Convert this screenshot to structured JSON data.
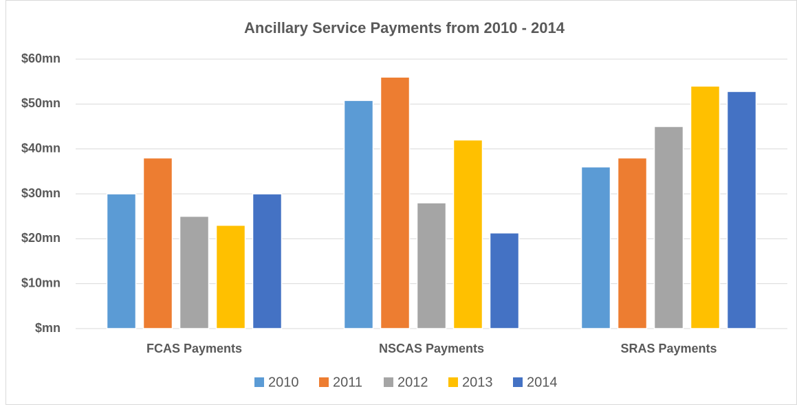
{
  "chart_data": {
    "type": "bar",
    "title": "Ancillary Service Payments from 2010 - 2014",
    "categories": [
      "FCAS Payments",
      "NSCAS Payments",
      "SRAS Payments"
    ],
    "series": [
      {
        "name": "2010",
        "color": "#5b9bd5",
        "values": [
          30,
          50.8,
          36
        ]
      },
      {
        "name": "2011",
        "color": "#ed7d31",
        "values": [
          38,
          56,
          38
        ]
      },
      {
        "name": "2012",
        "color": "#a5a5a5",
        "values": [
          25,
          28,
          45
        ]
      },
      {
        "name": "2013",
        "color": "#ffc000",
        "values": [
          23,
          42,
          54
        ]
      },
      {
        "name": "2014",
        "color": "#4472c4",
        "values": [
          30,
          21.3,
          52.8
        ]
      }
    ],
    "ylim": [
      0,
      60
    ],
    "yticks": [
      {
        "value": 0,
        "label": "$mn"
      },
      {
        "value": 10,
        "label": "$10mn"
      },
      {
        "value": 20,
        "label": "$20mn"
      },
      {
        "value": 30,
        "label": "$30mn"
      },
      {
        "value": 40,
        "label": "$40mn"
      },
      {
        "value": 50,
        "label": "$50mn"
      },
      {
        "value": 60,
        "label": "$60mn"
      }
    ],
    "grid": true,
    "legend": "bottom"
  }
}
